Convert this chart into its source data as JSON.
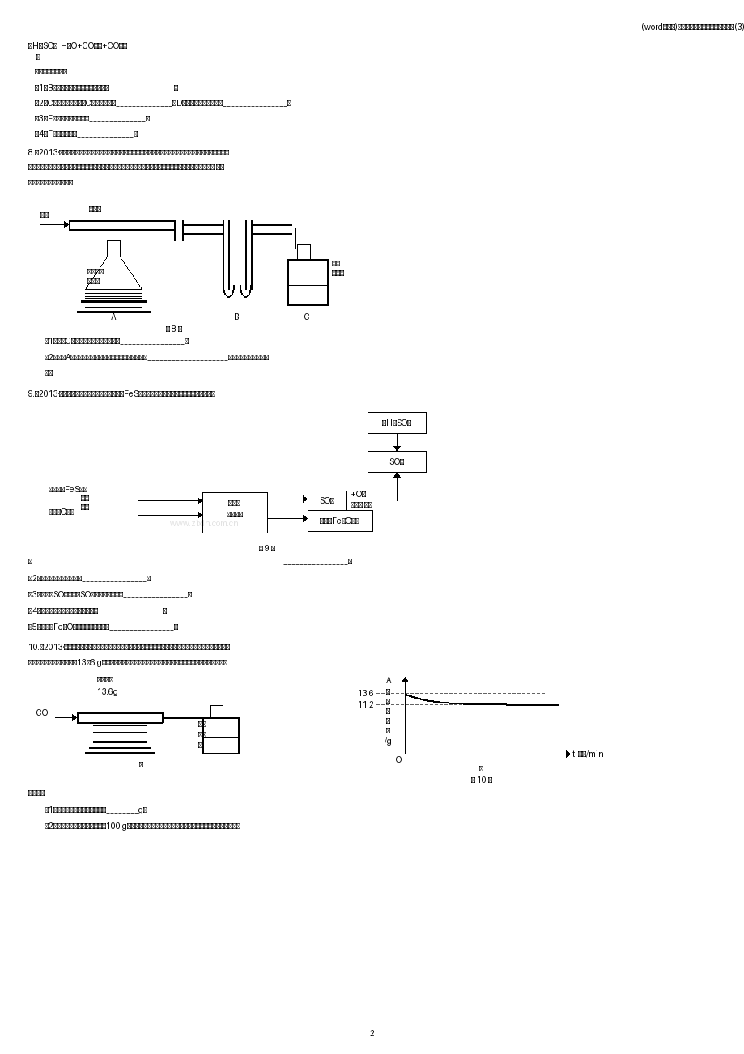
{
  "page_bg": "#ffffff",
  "text_color": "#111111",
  "header_right": "(word完整版)《金属的冶炼与利用》专题练习(3)",
  "page_number": "2",
  "watermark": "www.zixIn.com.cn"
}
